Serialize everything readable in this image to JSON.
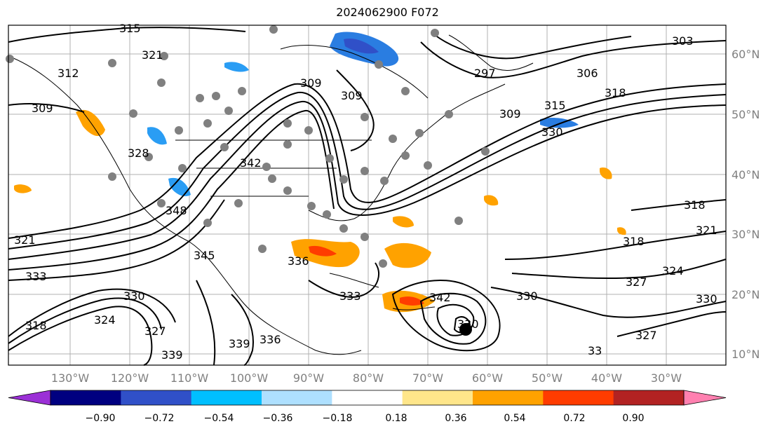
{
  "title": "2024062900 F072",
  "map": {
    "lon_labels": [
      "130°W",
      "120°W",
      "110°W",
      "100°W",
      "90°W",
      "80°W",
      "70°W",
      "60°W",
      "50°W",
      "40°W",
      "30°W"
    ],
    "lat_labels": [
      "60°N",
      "50°N",
      "40°N",
      "30°N",
      "20°N",
      "10°N"
    ],
    "contour_labels": [
      "315",
      "321",
      "312",
      "309",
      "328",
      "342",
      "348",
      "345",
      "336",
      "339",
      "330",
      "333",
      "309",
      "309",
      "297",
      "306",
      "303",
      "318",
      "315",
      "309",
      "330",
      "318",
      "321",
      "318",
      "324",
      "327",
      "330",
      "327",
      "330",
      "324",
      "327",
      "321",
      "318",
      "333",
      "330",
      "339",
      "336",
      "342",
      "33"
    ]
  },
  "colorbar": {
    "tick_labels": [
      "−0.90",
      "−0.72",
      "−0.54",
      "−0.36",
      "−0.18",
      "0.18",
      "0.36",
      "0.54",
      "0.72",
      "0.90"
    ],
    "colors": [
      "#9b30d6",
      "#000080",
      "#3050c8",
      "#00bfff",
      "#aee0ff",
      "#ffffff",
      "#ffe68a",
      "#ffa200",
      "#ff3c00",
      "#b22222",
      "#ff80b0"
    ]
  }
}
